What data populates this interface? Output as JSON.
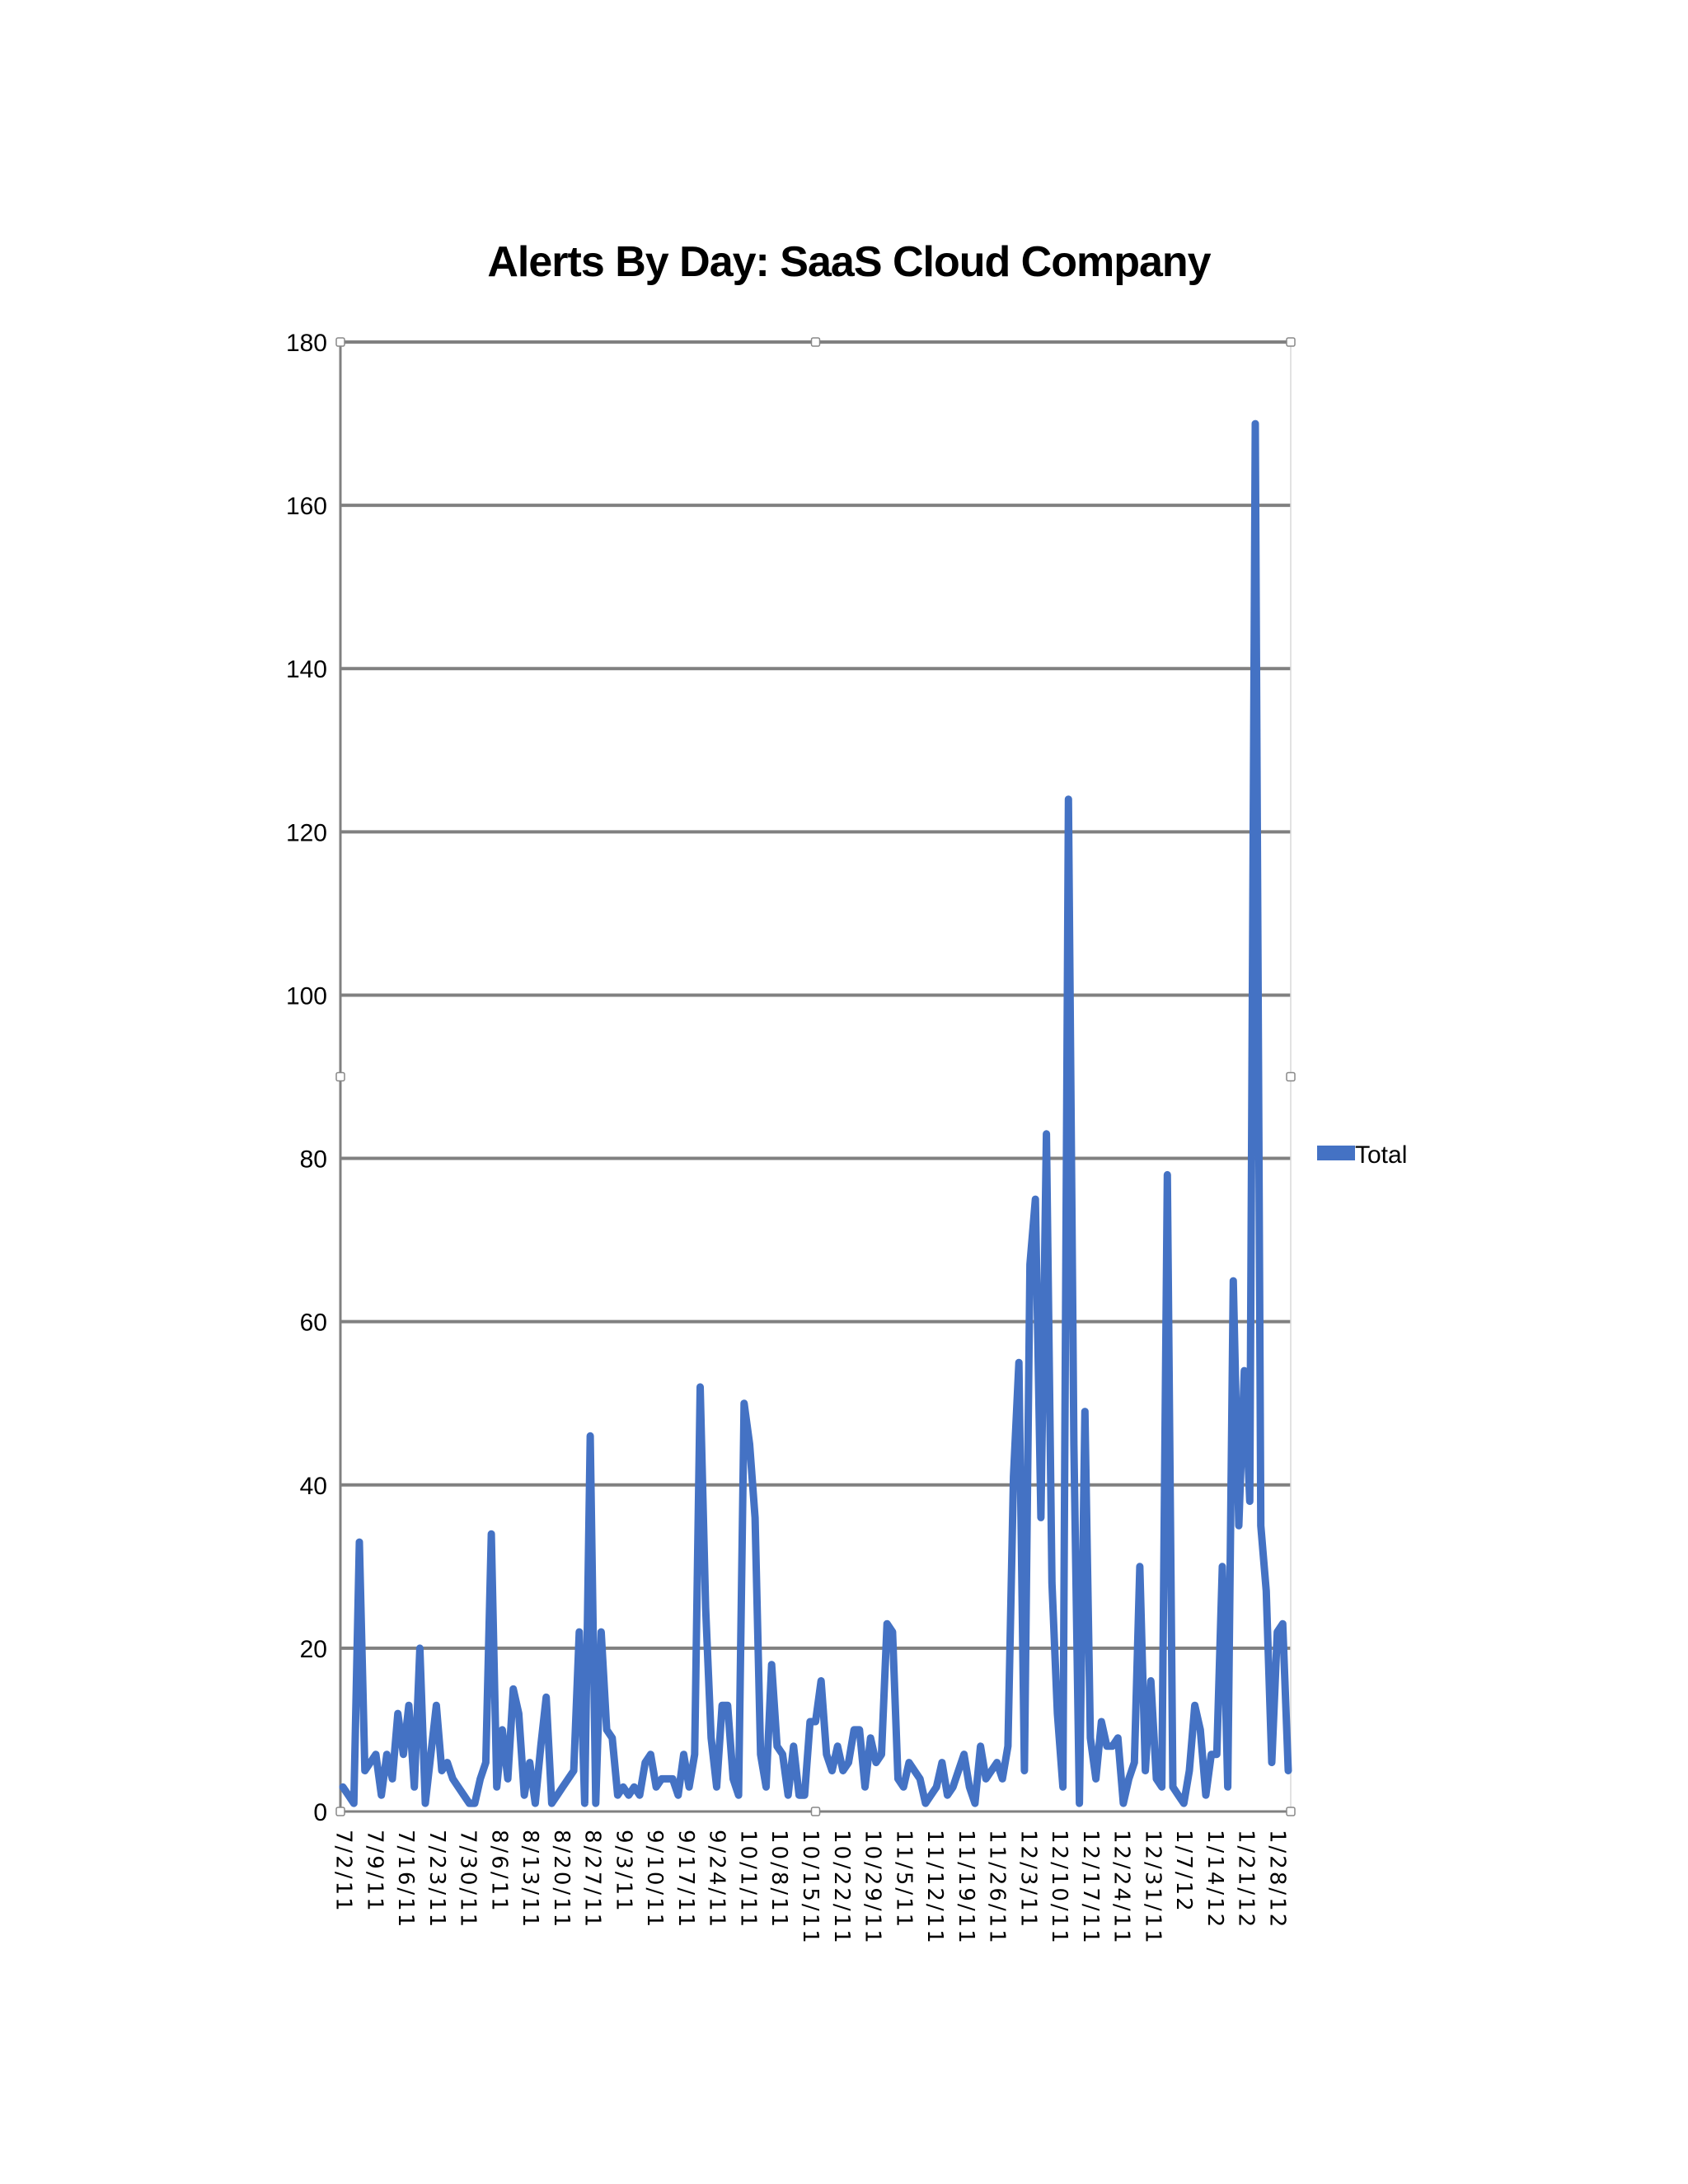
{
  "chart_data": {
    "type": "line",
    "title": "Alerts By Day:  SaaS Cloud Company",
    "xlabel": "",
    "ylabel": "",
    "ylim": [
      0,
      180
    ],
    "yticks": [
      "0",
      "20",
      "40",
      "60",
      "80",
      "100",
      "120",
      "140",
      "160",
      "180"
    ],
    "xticks": [
      "7/2/11",
      "7/9/11",
      "7/16/11",
      "7/23/11",
      "7/30/11",
      "8/6/11",
      "8/13/11",
      "8/20/11",
      "8/27/11",
      "9/3/11",
      "9/10/11",
      "9/17/11",
      "9/24/11",
      "10/1/11",
      "10/8/11",
      "10/15/11",
      "10/22/11",
      "10/29/11",
      "11/5/11",
      "11/12/11",
      "11/19/11",
      "11/26/11",
      "12/3/11",
      "12/10/11",
      "12/17/11",
      "12/24/11",
      "12/31/11",
      "1/7/12",
      "1/14/12",
      "1/21/12",
      "1/28/12"
    ],
    "grid": true,
    "legend": "right",
    "series": [
      {
        "name": "Total",
        "color": "#4472C4",
        "values": [
          3,
          2,
          1,
          33,
          5,
          6,
          7,
          2,
          7,
          4,
          12,
          7,
          13,
          3,
          20,
          1,
          7,
          13,
          5,
          6,
          4,
          3,
          2,
          1,
          1,
          4,
          6,
          34,
          3,
          10,
          4,
          15,
          12,
          2,
          6,
          1,
          8,
          14,
          1,
          2,
          3,
          4,
          5,
          22,
          1,
          46,
          1,
          22,
          10,
          9,
          2,
          3,
          2,
          3,
          2,
          6,
          7,
          3,
          4,
          4,
          4,
          2,
          7,
          3,
          7,
          52,
          25,
          9,
          3,
          13,
          13,
          4,
          2,
          50,
          45,
          36,
          7,
          3,
          18,
          8,
          7,
          2,
          8,
          2,
          2,
          11,
          11,
          16,
          7,
          5,
          8,
          5,
          6,
          10,
          10,
          3,
          9,
          6,
          7,
          23,
          22,
          4,
          3,
          6,
          5,
          4,
          1,
          2,
          3,
          6,
          2,
          3,
          5,
          7,
          3,
          1,
          8,
          4,
          5,
          6,
          4,
          8,
          41,
          55,
          5,
          67,
          75,
          36,
          83,
          28,
          12,
          3,
          124,
          45,
          1,
          49,
          9,
          4,
          11,
          8,
          8,
          9,
          1,
          4,
          6,
          30,
          5,
          16,
          4,
          3,
          78,
          3,
          2,
          1,
          5,
          13,
          10,
          2,
          7,
          7,
          30,
          3,
          65,
          35,
          54,
          38,
          170,
          35,
          27,
          6,
          22,
          23,
          5
        ]
      }
    ]
  }
}
